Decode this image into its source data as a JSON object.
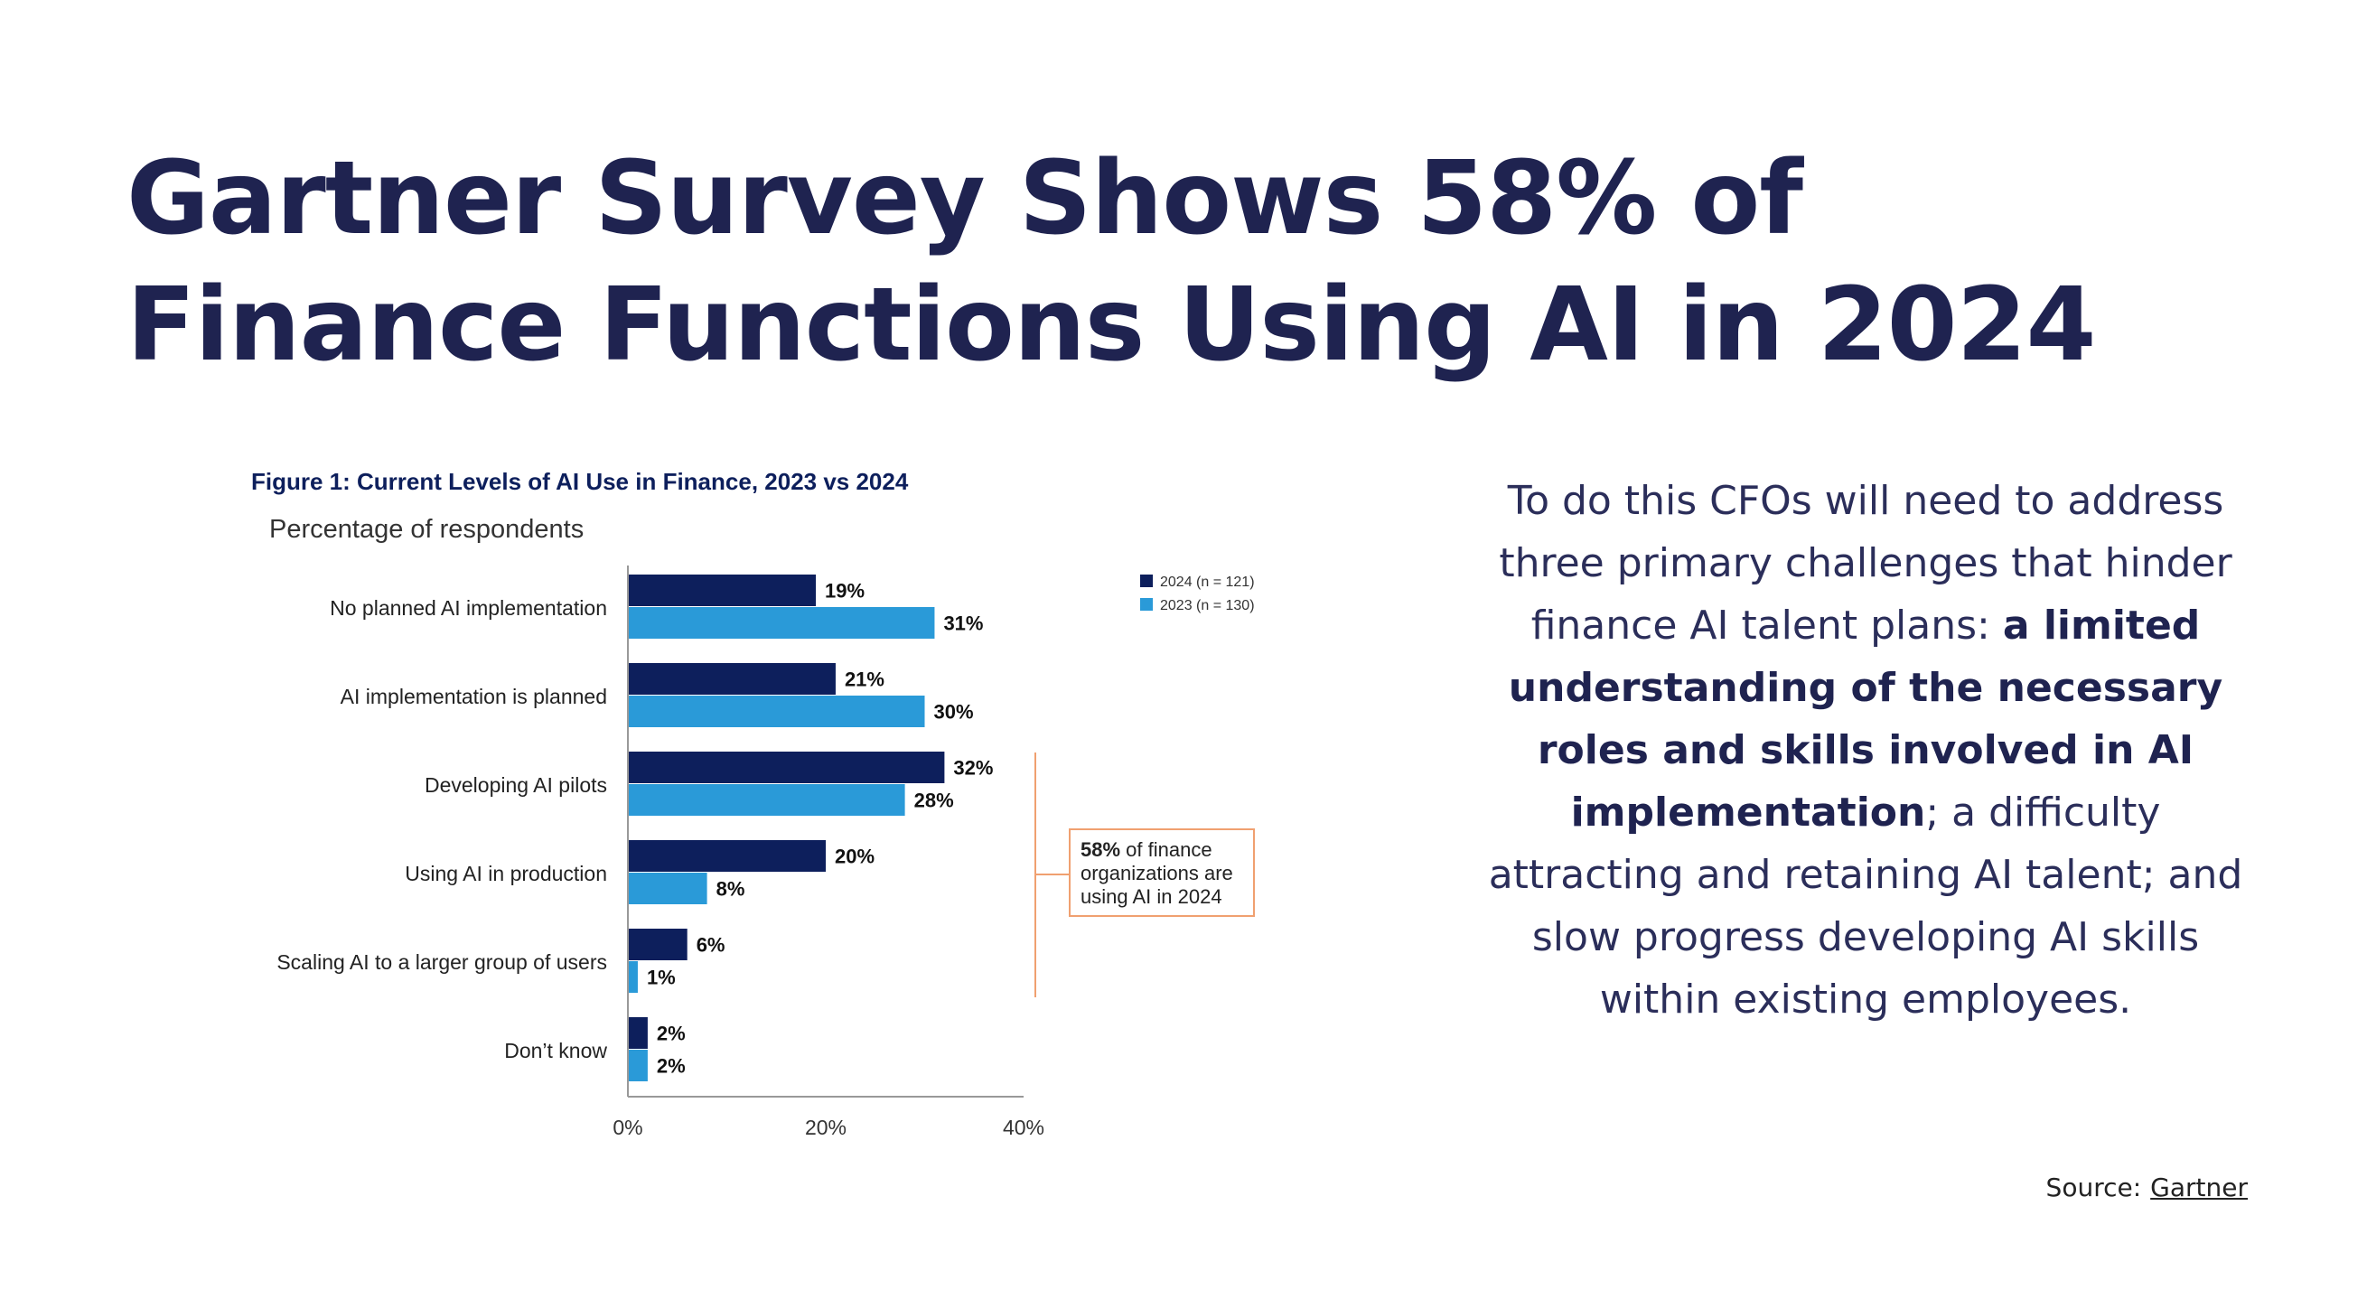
{
  "title": {
    "line1": "Gartner Survey Shows 58% of",
    "line2": "Finance Functions Using AI in 2024"
  },
  "body": {
    "part1": "To do this CFOs will need to address three primary challenges that hinder finance AI talent plans: ",
    "bold": "a limited understanding of the necessary roles and skills involved in AI implementation",
    "part2": "; a difficulty attracting and retaining AI talent; and slow progress developing AI skills within existing employees."
  },
  "source": {
    "label": "Source:",
    "link": "Gartner"
  },
  "colors": {
    "title": "#1f2350",
    "series_2024": "#0d1f5c",
    "series_2023": "#2a9ad8",
    "callout": "#f0a070"
  },
  "chart_data": {
    "type": "bar",
    "orientation": "horizontal",
    "title": "Figure 1: Current Levels of AI Use in Finance, 2023 vs 2024",
    "subtitle": "Percentage of respondents",
    "categories": [
      "No planned AI implementation",
      "AI implementation is planned",
      "Developing AI pilots",
      "Using AI in production",
      "Scaling AI to a larger group of users",
      "Don’t know"
    ],
    "series": [
      {
        "name": "2024 (n = 121)",
        "values": [
          19,
          21,
          32,
          20,
          6,
          2
        ],
        "color": "#0d1f5c"
      },
      {
        "name": "2023 (n = 130)",
        "values": [
          31,
          30,
          28,
          8,
          1,
          2
        ],
        "color": "#2a9ad8"
      }
    ],
    "value_suffix": "%",
    "xlim": [
      0,
      40
    ],
    "xticks": [
      "0%",
      "20%",
      "40%"
    ],
    "legend_position": "top-right",
    "grid": false,
    "annotation": {
      "bold": "58%",
      "text_line1": " of finance",
      "text_line2": "organizations are",
      "text_line3": "using AI in 2024"
    }
  }
}
